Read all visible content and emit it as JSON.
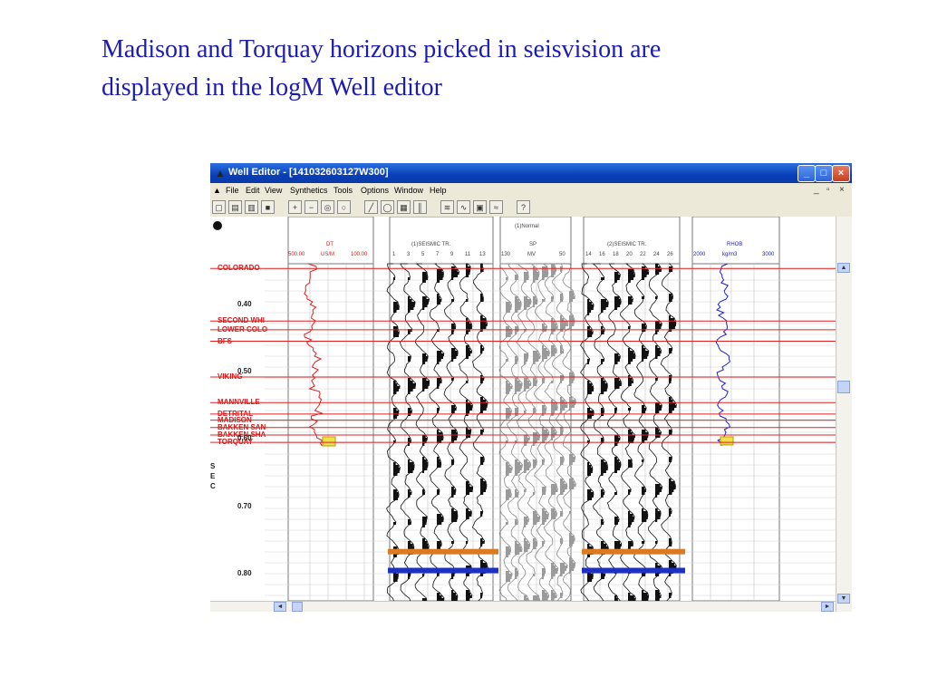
{
  "slide": {
    "title_line1": "Madison and Torquay horizons picked in seisvision are",
    "title_line2": "displayed in the logM Well editor"
  },
  "window": {
    "title": "Well Editor - [141032603127W300]",
    "controls": [
      "_",
      "□",
      "×"
    ],
    "mdi_controls": [
      "_",
      "▫",
      "×"
    ]
  },
  "menu": [
    "File",
    "Edit",
    "View",
    "Synthetics",
    "Tools",
    "Options",
    "Window",
    "Help"
  ],
  "tracks": {
    "dt": {
      "name": "DT",
      "unit": "US/M",
      "min": "500.00",
      "max": "100.00"
    },
    "seismic1": {
      "name": "(1)SEISMIC TR.",
      "ticks": [
        "1",
        "3",
        "5",
        "7",
        "9",
        "11",
        "13"
      ]
    },
    "sp": {
      "header": "(1)Normal",
      "name": "SP",
      "unit": "MV",
      "min": "130",
      "max": "50"
    },
    "seismic2": {
      "name": "(2)SEISMIC TR.",
      "ticks": [
        "14",
        "16",
        "18",
        "20",
        "22",
        "24",
        "26"
      ]
    },
    "rhob": {
      "name": "RHOB",
      "unit": "kg/m3",
      "min": "2000",
      "max": "3000"
    }
  },
  "horizons": [
    {
      "label": "COLORADO",
      "t": 0.347
    },
    {
      "label": "SECOND WHI",
      "t": 0.425
    },
    {
      "label": "LOWER COLO",
      "t": 0.438
    },
    {
      "label": "BFS",
      "t": 0.455
    },
    {
      "label": "VIKING",
      "t": 0.508
    },
    {
      "label": "MANNVILLE",
      "t": 0.546
    },
    {
      "label": "DETRITAL",
      "t": 0.563
    },
    {
      "label": "MADISON",
      "t": 0.572
    },
    {
      "label": "BAKKEN SAN",
      "t": 0.583
    },
    {
      "label": "BAKKEN SHA",
      "t": 0.594
    },
    {
      "label": "TORQUAY",
      "t": 0.605
    }
  ],
  "time_axis": {
    "ticks": [
      "0.40",
      "0.50",
      "0.60",
      "0.70",
      "0.80"
    ],
    "values": [
      0.4,
      0.5,
      0.6,
      0.7,
      0.8
    ],
    "range": [
      0.34,
      0.84
    ]
  },
  "side_letters": [
    "S",
    "E",
    "C"
  ],
  "colors": {
    "horizon": "#e02020",
    "title_text": "#1c1cb4",
    "dt_curve": "#e02020",
    "rhob_curve": "#2020d0",
    "event_orange": "#d97b1e",
    "event_blue": "#1c2fc8"
  },
  "icons": [
    "new-icon",
    "open-icon",
    "open-well-icon",
    "save-icon",
    "zoom-in-icon",
    "zoom-out-icon",
    "zoom-box-icon",
    "zoom-reset-icon",
    "line-tool-icon",
    "circle-tool-icon",
    "tops-icon",
    "correlate-icon",
    "seismic-icon",
    "wavelet-icon",
    "filter-icon",
    "synthetic-icon",
    "help-icon"
  ]
}
